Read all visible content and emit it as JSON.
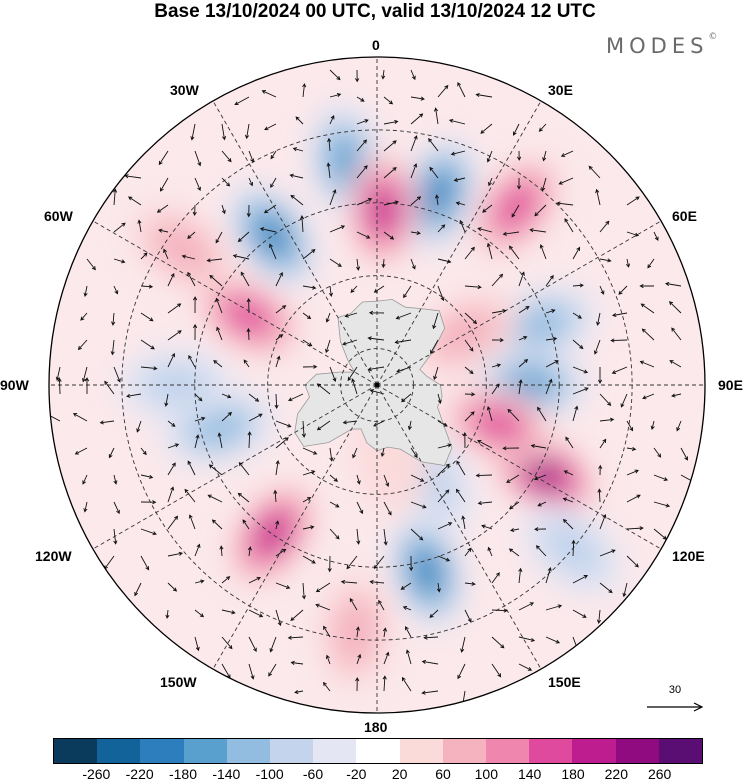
{
  "title": "Base 13/10/2024 00 UTC, valid 13/10/2024 12 UTC",
  "brand": {
    "name": "MODES",
    "mark": "©"
  },
  "longitude_labels": {
    "n0": "0",
    "e30": "30E",
    "e60": "60E",
    "e90": "90E",
    "e120": "120E",
    "e150": "150E",
    "s180": "180",
    "w150": "150W",
    "w120": "120W",
    "w90": "90W",
    "w60": "60W",
    "w30": "30W"
  },
  "reference_vector": {
    "value": "30"
  },
  "colorbar": {
    "colors": [
      "#0b3b5c",
      "#12639a",
      "#2c7fbc",
      "#5aa0cf",
      "#93bde0",
      "#c3d4ec",
      "#e5e6f3",
      "#ffffff",
      "#fbdada",
      "#f4b3bf",
      "#ee86ad",
      "#e04a9e",
      "#be1d8f",
      "#8f0b7f",
      "#5a0d73"
    ],
    "ticks": [
      "-260",
      "-220",
      "-180",
      "-140",
      "-100",
      "-60",
      "-20",
      "20",
      "60",
      "100",
      "140",
      "180",
      "220",
      "260"
    ]
  },
  "map": {
    "projection": "south-polar-stereographic",
    "field_anomalies": [
      {
        "lon": -8,
        "colat": 62,
        "value": -150
      },
      {
        "lon": 18,
        "colat": 55,
        "value": -200
      },
      {
        "lon": 2,
        "colat": 48,
        "value": 200
      },
      {
        "lon": -35,
        "colat": 50,
        "value": -190
      },
      {
        "lon": 38,
        "colat": 62,
        "value": 160
      },
      {
        "lon": -55,
        "colat": 65,
        "value": 60
      },
      {
        "lon": -62,
        "colat": 40,
        "value": 160
      },
      {
        "lon": 70,
        "colat": 48,
        "value": -110
      },
      {
        "lon": 60,
        "colat": 28,
        "value": 80
      },
      {
        "lon": 90,
        "colat": 42,
        "value": -160
      },
      {
        "lon": 118,
        "colat": 52,
        "value": 230
      },
      {
        "lon": 108,
        "colat": 35,
        "value": 140
      },
      {
        "lon": 150,
        "colat": 30,
        "value": -60
      },
      {
        "lon": 165,
        "colat": 53,
        "value": -210
      },
      {
        "lon": -145,
        "colat": 50,
        "value": 200
      },
      {
        "lon": -105,
        "colat": 45,
        "value": -120
      },
      {
        "lon": -90,
        "colat": 55,
        "value": -60
      },
      {
        "lon": 170,
        "colat": 20,
        "value": 50
      },
      {
        "lon": -175,
        "colat": 68,
        "value": 80
      },
      {
        "lon": 130,
        "colat": 70,
        "value": -70
      }
    ]
  }
}
